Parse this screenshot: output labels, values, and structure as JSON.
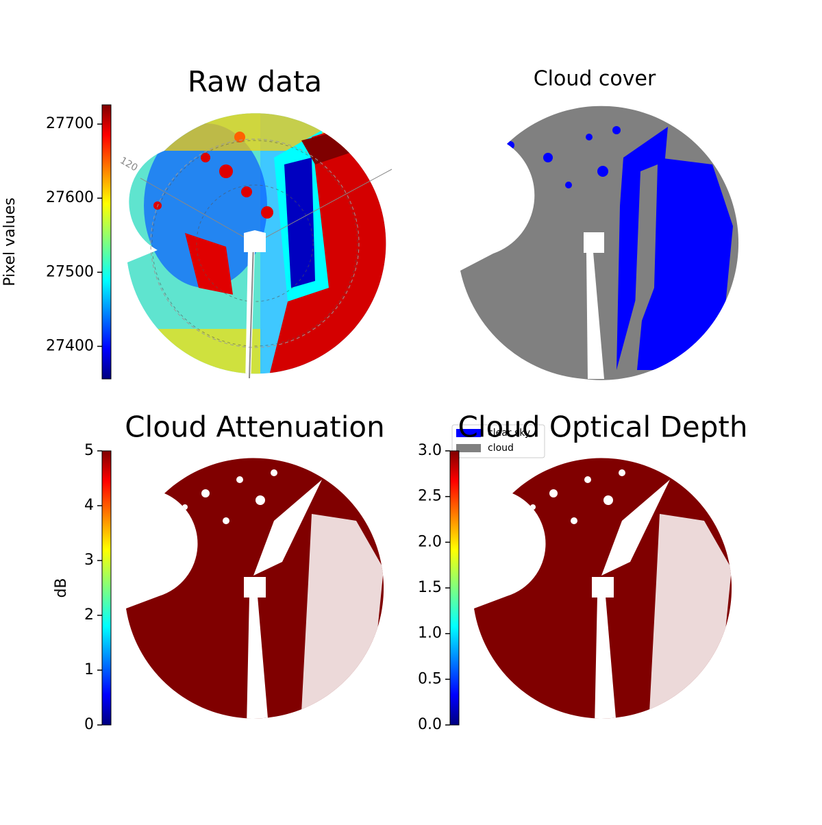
{
  "chart_data": [
    {
      "type": "image",
      "title": "Raw data",
      "ylabel": "Pixel values",
      "ylim": [
        27356,
        27726
      ],
      "yticks": [
        27400,
        27500,
        27600,
        27700
      ],
      "annotation": "120"
    },
    {
      "type": "image",
      "title": "Cloud cover",
      "series": [
        {
          "name": "clear sky",
          "color": "#0000ff"
        },
        {
          "name": "cloud",
          "color": "#808080"
        }
      ]
    },
    {
      "type": "image",
      "title": "Cloud Attenuation",
      "ylabel": "dB",
      "ylim": [
        0,
        5
      ],
      "yticks": [
        0,
        1,
        2,
        3,
        4,
        5
      ]
    },
    {
      "type": "image",
      "title": "Cloud Optical Depth",
      "ylim": [
        0,
        3
      ],
      "yticks": [
        {
          "value": 0,
          "label": "0.0"
        },
        {
          "value": 0.5,
          "label": "0.5"
        },
        {
          "value": 1,
          "label": "1.0"
        },
        {
          "value": 1.5,
          "label": "1.5"
        },
        {
          "value": 2,
          "label": "2.0"
        },
        {
          "value": 2.5,
          "label": "2.5"
        },
        {
          "value": 3,
          "label": "3.0"
        }
      ]
    }
  ]
}
